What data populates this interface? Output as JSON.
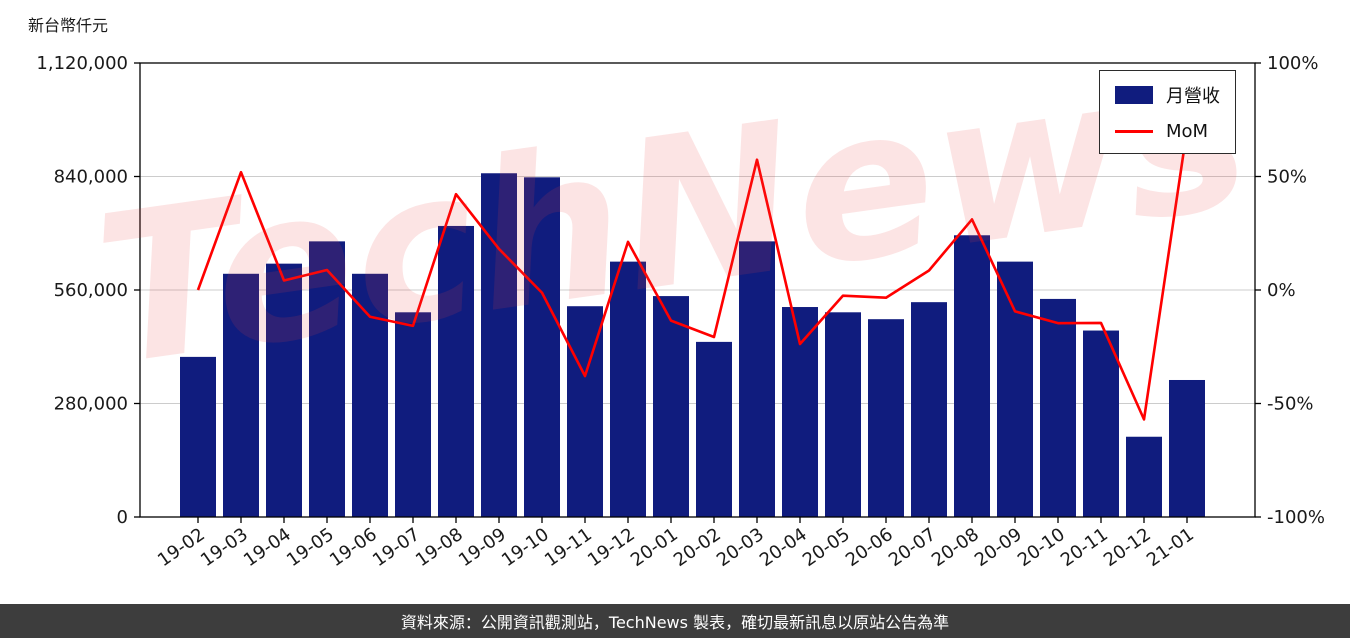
{
  "title": "新台幣仟元",
  "watermark": "TechNews",
  "footer": "資料來源：公開資訊觀測站，TechNews 製表，確切最新訊息以原站公告為準",
  "colors": {
    "bar": "#101c7e",
    "line": "#ff0000",
    "grid": "#cccccc",
    "axis": "#000000",
    "footer_bg": "#3d3d3d",
    "watermark": "rgba(232,62,62,0.14)"
  },
  "legend": {
    "bar_label": "月營收",
    "line_label": "MoM"
  },
  "chart_data": {
    "type": "bar",
    "categories": [
      "19-02",
      "19-03",
      "19-04",
      "19-05",
      "19-06",
      "19-07",
      "19-08",
      "19-09",
      "19-10",
      "19-11",
      "19-12",
      "20-01",
      "20-02",
      "20-03",
      "20-04",
      "20-05",
      "20-06",
      "20-07",
      "20-08",
      "20-09",
      "20-10",
      "20-11",
      "20-12",
      "21-01"
    ],
    "series": [
      {
        "name": "月營收",
        "type": "bar",
        "axis": "left",
        "values": [
          395000,
          600000,
          625000,
          680000,
          600000,
          505000,
          718000,
          848000,
          838000,
          520000,
          630000,
          545000,
          432000,
          680000,
          518000,
          505000,
          488000,
          530000,
          695000,
          630000,
          538000,
          460000,
          198000,
          338000
        ]
      },
      {
        "name": "MoM",
        "type": "line",
        "axis": "right",
        "values": [
          0,
          51.9,
          4.2,
          8.8,
          -11.8,
          -15.8,
          42.2,
          18.1,
          -1.2,
          -37.9,
          21.2,
          -13.5,
          -20.7,
          57.4,
          -23.8,
          -2.5,
          -3.4,
          8.6,
          31.1,
          -9.4,
          -14.6,
          -14.5,
          -57.0,
          70.7
        ]
      }
    ],
    "left_axis": {
      "label": "新台幣仟元",
      "range": [
        0,
        1120000
      ],
      "ticks": [
        0,
        280000,
        560000,
        840000,
        1120000
      ]
    },
    "right_axis": {
      "range": [
        -100,
        100
      ],
      "ticks": [
        -100,
        -50,
        0,
        50,
        100
      ],
      "tick_format": "percent"
    },
    "legend_position": "top-right",
    "grid": true
  }
}
